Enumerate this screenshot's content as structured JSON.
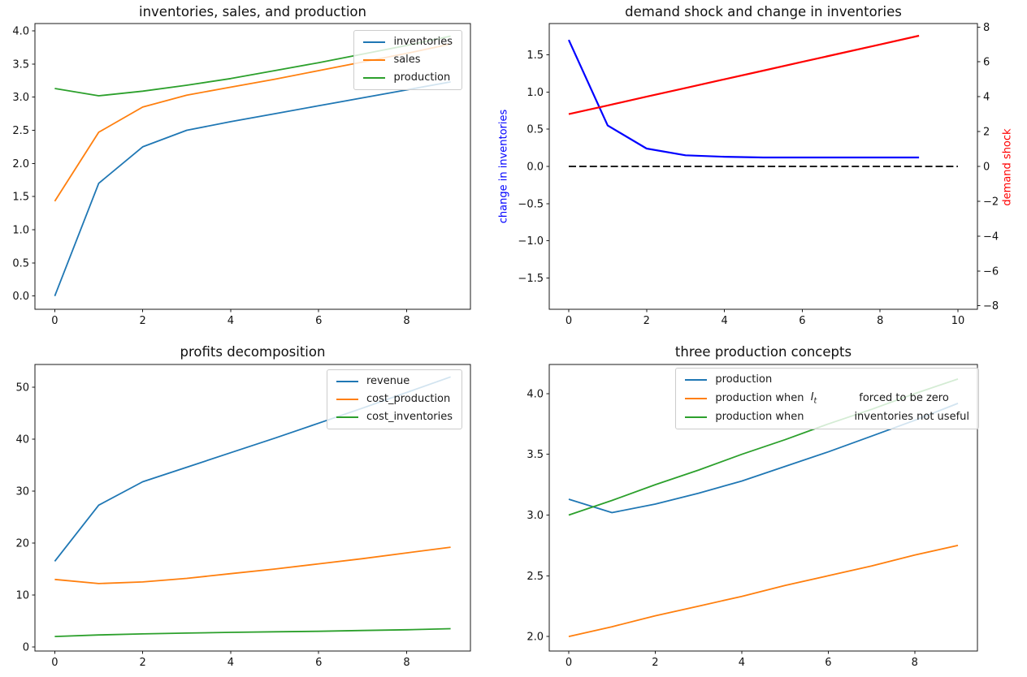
{
  "figure": {
    "background": "#ffffff",
    "text_color": "#111111",
    "spine_color": "#1a1a1a"
  },
  "chart_data": [
    {
      "id": "inventories-sales-and-production",
      "type": "line",
      "title": "inventories, sales, and production",
      "x": [
        0,
        1,
        2,
        3,
        4,
        5,
        6,
        7,
        8,
        9
      ],
      "xlim": [
        -0.45,
        9.45
      ],
      "ylim": [
        -0.2,
        4.11
      ],
      "xticks": [
        0,
        2,
        4,
        6,
        8
      ],
      "yticks": [
        0.0,
        0.5,
        1.0,
        1.5,
        2.0,
        2.5,
        3.0,
        3.5,
        4.0
      ],
      "ytick_decimals": 1,
      "grid": false,
      "legend_position": "upper right",
      "series": [
        {
          "name": "inventories",
          "color": "#1f77b4",
          "values": [
            0.0,
            1.7,
            2.25,
            2.5,
            2.63,
            2.75,
            2.87,
            2.99,
            3.11,
            3.23
          ]
        },
        {
          "name": "sales",
          "color": "#ff7f0e",
          "values": [
            1.43,
            2.47,
            2.85,
            3.03,
            3.15,
            3.27,
            3.4,
            3.53,
            3.66,
            3.8
          ]
        },
        {
          "name": "production",
          "color": "#2ca02c",
          "values": [
            3.13,
            3.02,
            3.09,
            3.18,
            3.28,
            3.4,
            3.52,
            3.65,
            3.78,
            3.92
          ]
        }
      ],
      "legend": [
        {
          "label": "inventories",
          "color": "#1f77b4"
        },
        {
          "label": "sales",
          "color": "#ff7f0e"
        },
        {
          "label": "production",
          "color": "#2ca02c"
        }
      ]
    },
    {
      "id": "demand-shock-and-change-in-inventories",
      "type": "line",
      "title": "demand shock and change in inventories",
      "x": [
        0,
        1,
        2,
        3,
        4,
        5,
        6,
        7,
        8,
        9
      ],
      "xlim": [
        -0.5,
        10.5
      ],
      "ylim": [
        -1.92,
        1.92
      ],
      "ylim_right": [
        -8.2,
        8.2
      ],
      "xticks": [
        0,
        2,
        4,
        6,
        8,
        10
      ],
      "yticks": [
        -1.5,
        -1.0,
        -0.5,
        0.0,
        0.5,
        1.0,
        1.5
      ],
      "ytick_decimals": 1,
      "yticks_right": [
        -8,
        -6,
        -4,
        -2,
        0,
        2,
        4,
        6,
        8
      ],
      "ytick_right_decimals": 0,
      "ylabel_left": "change in inventories",
      "ylabel_left_color": "#0000ff",
      "ylabel_right": "demand shock",
      "ylabel_right_color": "#ff0000",
      "grid": false,
      "series": [
        {
          "name": "change in inventories",
          "color": "#0000ff",
          "axis": "left",
          "width": 2.2,
          "values": [
            1.7,
            0.55,
            0.24,
            0.15,
            0.13,
            0.12,
            0.12,
            0.12,
            0.12,
            0.12
          ]
        },
        {
          "name": "demand shock",
          "color": "#ff0000",
          "axis": "right",
          "width": 2.2,
          "values": [
            3.0,
            3.5,
            4.0,
            4.5,
            5.0,
            5.5,
            6.0,
            6.5,
            7.0,
            7.5
          ]
        },
        {
          "name": "zero line",
          "color": "#000000",
          "axis": "left",
          "width": 1.8,
          "dash": true,
          "x": [
            0,
            10
          ],
          "values": [
            0,
            0
          ]
        }
      ]
    },
    {
      "id": "profits-decomposition",
      "type": "line",
      "title": "profits decomposition",
      "x": [
        0,
        1,
        2,
        3,
        4,
        5,
        6,
        7,
        8,
        9
      ],
      "xlim": [
        -0.45,
        9.45
      ],
      "ylim": [
        -0.8,
        54.4
      ],
      "xticks": [
        0,
        2,
        4,
        6,
        8
      ],
      "yticks": [
        0,
        10,
        20,
        30,
        40,
        50
      ],
      "ytick_decimals": 0,
      "grid": false,
      "legend_position": "upper right",
      "series": [
        {
          "name": "revenue",
          "color": "#1f77b4",
          "values": [
            16.5,
            27.3,
            31.8,
            34.6,
            37.4,
            40.2,
            43.1,
            46.0,
            49.0,
            52.0
          ]
        },
        {
          "name": "cost_production",
          "color": "#ff7f0e",
          "values": [
            13.0,
            12.2,
            12.5,
            13.2,
            14.1,
            15.0,
            16.0,
            17.0,
            18.1,
            19.2
          ]
        },
        {
          "name": "cost_inventories",
          "color": "#2ca02c",
          "values": [
            2.0,
            2.3,
            2.5,
            2.65,
            2.8,
            2.9,
            3.0,
            3.15,
            3.3,
            3.5
          ]
        }
      ],
      "legend": [
        {
          "label": "revenue",
          "color": "#1f77b4"
        },
        {
          "label": "cost_production",
          "color": "#ff7f0e"
        },
        {
          "label": "cost_inventories",
          "color": "#2ca02c"
        }
      ]
    },
    {
      "id": "three-production-concepts",
      "type": "line",
      "title": "three production concepts",
      "x": [
        0,
        1,
        2,
        3,
        4,
        5,
        6,
        7,
        8,
        9
      ],
      "xlim": [
        -0.45,
        9.45
      ],
      "ylim": [
        1.88,
        4.24
      ],
      "xticks": [
        0,
        2,
        4,
        6,
        8
      ],
      "yticks": [
        2.0,
        2.5,
        3.0,
        3.5,
        4.0
      ],
      "ytick_decimals": 1,
      "grid": false,
      "legend_position": "upper right",
      "series": [
        {
          "name": "production",
          "color": "#1f77b4",
          "values": [
            3.13,
            3.02,
            3.09,
            3.18,
            3.28,
            3.4,
            3.52,
            3.65,
            3.78,
            3.92
          ]
        },
        {
          "name": "production when I_t forced to be zero",
          "color": "#ff7f0e",
          "values": [
            2.0,
            2.08,
            2.17,
            2.25,
            2.33,
            2.42,
            2.5,
            2.58,
            2.67,
            2.75
          ]
        },
        {
          "name": "production when inventories not useful",
          "color": "#2ca02c",
          "values": [
            3.0,
            3.12,
            3.25,
            3.37,
            3.5,
            3.62,
            3.75,
            3.87,
            4.0,
            4.12
          ]
        }
      ],
      "legend": [
        {
          "label": "production",
          "color": "#1f77b4"
        },
        {
          "pre": "production when  ",
          "math_base": "I",
          "math_sub": "t",
          "post": "forced to be zero",
          "gap": 52,
          "color": "#ff7f0e"
        },
        {
          "pre": "production when",
          "post": "inventories not useful",
          "gap": 62,
          "color": "#2ca02c"
        }
      ]
    }
  ]
}
